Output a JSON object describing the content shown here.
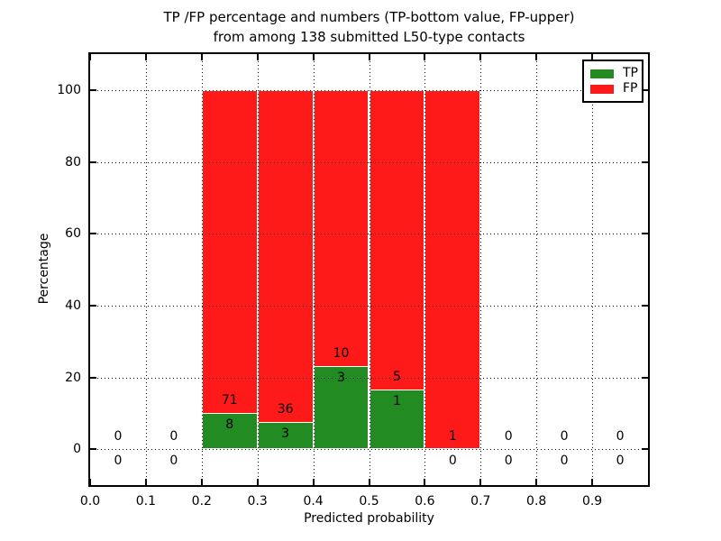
{
  "chart_data": {
    "type": "bar",
    "stacked_percentage": true,
    "title_line1": "TP /FP percentage and numbers (TP-bottom value, FP-upper)",
    "title_line2": "from among 138 submitted L50-type contacts",
    "xlabel": "Predicted probability",
    "ylabel": "Percentage",
    "xlim": [
      0.0,
      1.0
    ],
    "ylim": [
      -10,
      110
    ],
    "xtick_values": [
      0.0,
      0.1,
      0.2,
      0.3,
      0.4,
      0.5,
      0.6,
      0.7,
      0.8,
      0.9
    ],
    "xtick_labels": [
      "0.0",
      "0.1",
      "0.2",
      "0.3",
      "0.4",
      "0.5",
      "0.6",
      "0.7",
      "0.8",
      "0.9"
    ],
    "ytick_values": [
      0,
      20,
      40,
      60,
      80,
      100
    ],
    "ytick_labels": [
      "0",
      "20",
      "40",
      "60",
      "80",
      "100"
    ],
    "grid": {
      "style": "dotted",
      "color": "#000000",
      "above_bars": true
    },
    "total_contacts": 138,
    "colors": {
      "tp": "#228b22",
      "fp": "#ff1a1a"
    },
    "legend": {
      "position": "upper right",
      "items": [
        {
          "key": "tp",
          "label": "TP"
        },
        {
          "key": "fp",
          "label": "FP"
        }
      ]
    },
    "bins": [
      {
        "x0": 0.0,
        "x1": 0.1,
        "tp": 0,
        "fp": 0,
        "tp_pct": 0
      },
      {
        "x0": 0.1,
        "x1": 0.2,
        "tp": 0,
        "fp": 0,
        "tp_pct": 0
      },
      {
        "x0": 0.2,
        "x1": 0.3,
        "tp": 8,
        "fp": 71,
        "tp_pct": 10.1
      },
      {
        "x0": 0.3,
        "x1": 0.4,
        "tp": 3,
        "fp": 36,
        "tp_pct": 7.7
      },
      {
        "x0": 0.4,
        "x1": 0.5,
        "tp": 3,
        "fp": 10,
        "tp_pct": 23.1
      },
      {
        "x0": 0.5,
        "x1": 0.6,
        "tp": 1,
        "fp": 5,
        "tp_pct": 16.7
      },
      {
        "x0": 0.6,
        "x1": 0.7,
        "tp": 0,
        "fp": 1,
        "tp_pct": 0
      },
      {
        "x0": 0.7,
        "x1": 0.8,
        "tp": 0,
        "fp": 0,
        "tp_pct": 0
      },
      {
        "x0": 0.8,
        "x1": 0.9,
        "tp": 0,
        "fp": 0,
        "tp_pct": 0
      },
      {
        "x0": 0.9,
        "x1": 1.0,
        "tp": 0,
        "fp": 0,
        "tp_pct": 0
      }
    ]
  }
}
